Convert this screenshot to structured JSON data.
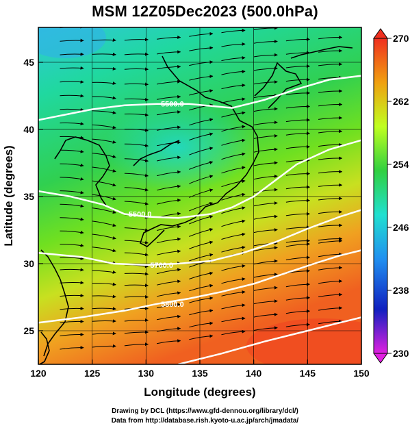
{
  "title": "MSM 12Z05Dec2023 (500.0hPa)",
  "credits": {
    "line1": "Drawing by DCL (https://www.gfd-dennou.org/library/dcl/)",
    "line2": "Data from http://database.rish.kyoto-u.ac.jp/arch/jmadata/"
  },
  "map": {
    "xlabel": "Longitude (degrees)",
    "ylabel": "Latitude  (degrees)",
    "lon_range": [
      120,
      150
    ],
    "lat_range": [
      22.5,
      47.6
    ],
    "lon_ticks": [
      "120",
      "125",
      "130",
      "135",
      "140",
      "145",
      "150"
    ],
    "lat_ticks": [
      "25",
      "30",
      "35",
      "40",
      "45"
    ],
    "field": "500 hPa temperature (K) with wind streamlines",
    "contours": [
      {
        "label": "5500.0",
        "lat_at_lon": [
          [
            120,
            40.7
          ],
          [
            125,
            41.5
          ],
          [
            128,
            41.8
          ],
          [
            131,
            41.9
          ],
          [
            134,
            41.9
          ],
          [
            138,
            41.6
          ],
          [
            141,
            42.2
          ],
          [
            144,
            43.0
          ],
          [
            147,
            43.7
          ],
          [
            150,
            44.0
          ]
        ]
      },
      {
        "label": "5500.0",
        "lat_at_lon": [
          [
            120,
            35.4
          ],
          [
            123,
            35.0
          ],
          [
            126,
            34.4
          ],
          [
            128,
            33.7
          ],
          [
            130,
            33.5
          ],
          [
            133,
            33.4
          ],
          [
            136,
            33.7
          ],
          [
            138,
            34.2
          ],
          [
            140,
            35.0
          ],
          [
            142,
            36.2
          ],
          [
            144,
            37.4
          ],
          [
            147,
            38.5
          ],
          [
            150,
            39.2
          ]
        ]
      },
      {
        "label": "5700.0",
        "lat_at_lon": [
          [
            120,
            30.8
          ],
          [
            124,
            30.5
          ],
          [
            127,
            30.0
          ],
          [
            130,
            29.9
          ],
          [
            133,
            30.0
          ],
          [
            136,
            30.2
          ],
          [
            139,
            30.8
          ],
          [
            142,
            31.6
          ],
          [
            145,
            32.6
          ],
          [
            148,
            33.5
          ],
          [
            150,
            34.0
          ]
        ]
      },
      {
        "label": "5800.0",
        "lat_at_lon": [
          [
            120,
            25.6
          ],
          [
            124,
            26.0
          ],
          [
            128,
            26.5
          ],
          [
            131,
            27.0
          ],
          [
            134,
            27.4
          ],
          [
            137,
            27.9
          ],
          [
            140,
            28.5
          ],
          [
            143,
            29.3
          ],
          [
            146,
            30.1
          ],
          [
            148,
            30.6
          ],
          [
            150,
            31.0
          ]
        ]
      },
      {
        "label": "",
        "lat_at_lon": [
          [
            133,
            22.5
          ],
          [
            137,
            23.3
          ],
          [
            141,
            24.2
          ],
          [
            145,
            25.0
          ],
          [
            148,
            25.6
          ],
          [
            150,
            26.0
          ]
        ]
      }
    ]
  },
  "colorbar": {
    "min": 230,
    "max": 270,
    "ticks": [
      "270",
      "262",
      "254",
      "246",
      "238",
      "230"
    ],
    "stops": [
      "#e020e0",
      "#1020c0",
      "#2090f0",
      "#20e0d0",
      "#30d040",
      "#c0ff20",
      "#f0a010",
      "#f03020"
    ]
  }
}
